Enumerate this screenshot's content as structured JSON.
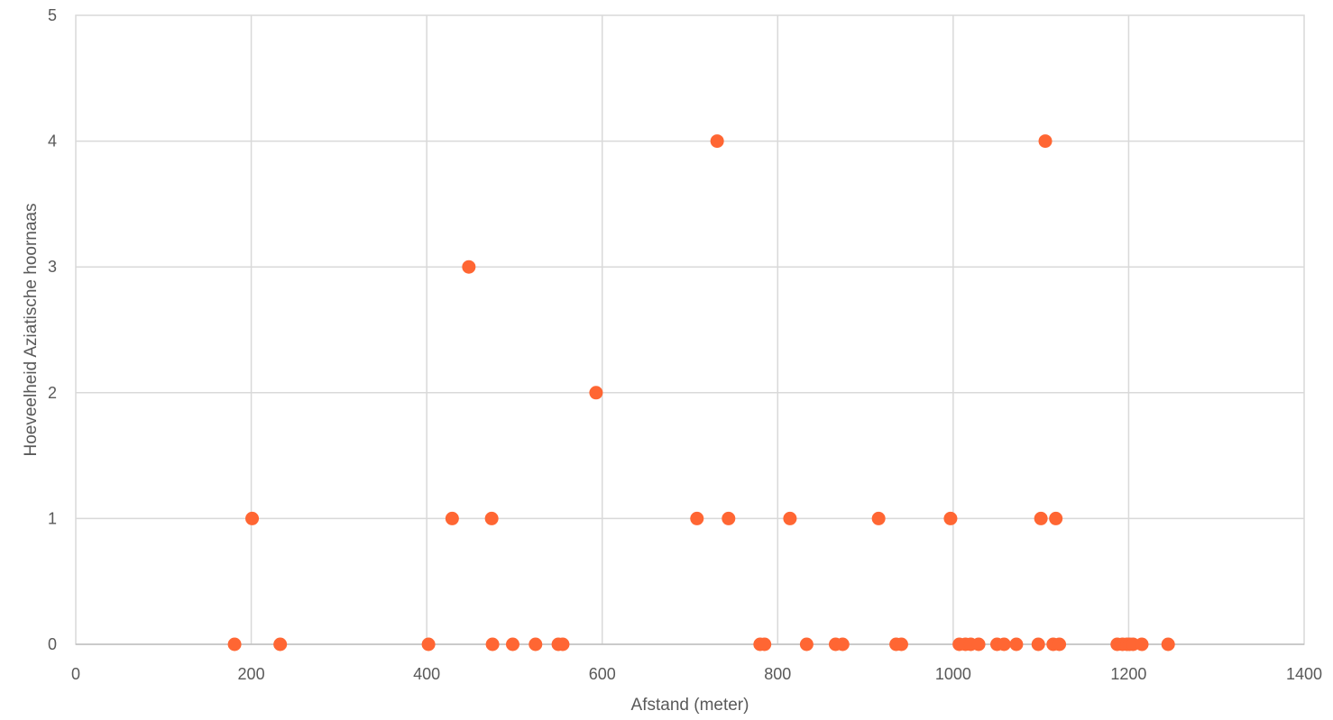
{
  "chart_data": {
    "type": "scatter",
    "xlabel": "Afstand (meter)",
    "ylabel": "Hoeveelheid Aziatische hoornaas",
    "xlim": [
      0,
      1400
    ],
    "ylim": [
      0,
      5
    ],
    "xticks": [
      0,
      200,
      400,
      600,
      800,
      1000,
      1200,
      1400
    ],
    "yticks": [
      0,
      1,
      2,
      3,
      4,
      5
    ],
    "grid": true,
    "marker_color": "#ff6633",
    "series": [
      {
        "x": [
          181,
          201,
          233,
          402,
          429,
          448,
          474,
          475,
          498,
          524,
          550,
          555,
          593,
          708,
          731,
          744,
          780,
          785,
          814,
          833,
          866,
          874,
          915,
          935,
          941,
          997,
          1007,
          1014,
          1020,
          1029,
          1050,
          1058,
          1072,
          1097,
          1100,
          1105,
          1114,
          1117,
          1121,
          1187,
          1193,
          1198,
          1201,
          1205,
          1215,
          1245
        ],
        "y": [
          0,
          1,
          0,
          0,
          1,
          3,
          1,
          0,
          0,
          0,
          0,
          0,
          2,
          1,
          4,
          1,
          0,
          0,
          1,
          0,
          0,
          0,
          1,
          0,
          0,
          1,
          0,
          0,
          0,
          0,
          0,
          0,
          0,
          0,
          1,
          4,
          0,
          1,
          0,
          0,
          0,
          0,
          0,
          0,
          0,
          0
        ]
      }
    ]
  }
}
